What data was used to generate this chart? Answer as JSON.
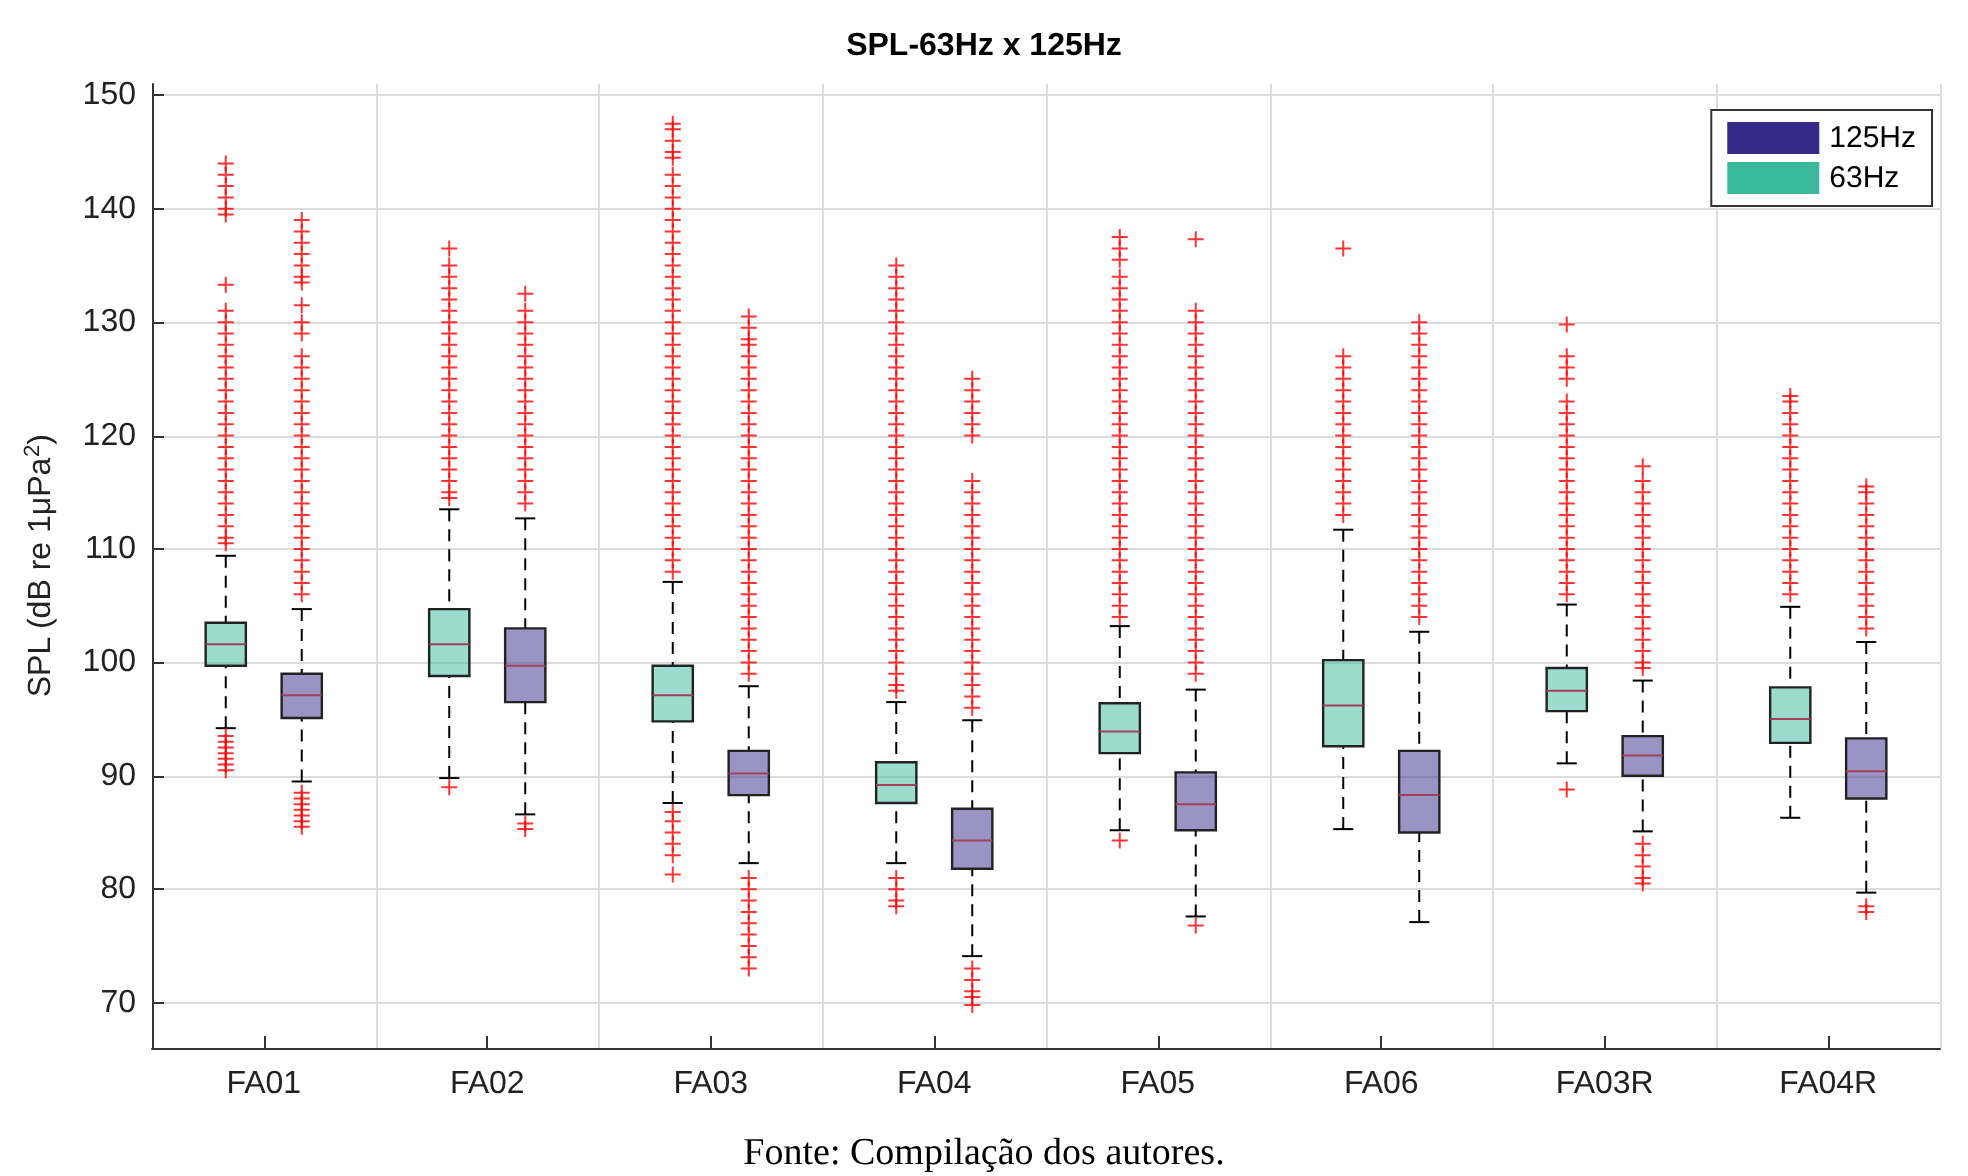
{
  "chart_data": {
    "type": "box",
    "title": "SPL-63Hz x 125Hz",
    "ylabel": "SPL (dB re 1μPa$^{2}$)",
    "categories": [
      "FA01",
      "FA02",
      "FA03",
      "FA04",
      "FA05",
      "FA06",
      "FA03R",
      "FA04R"
    ],
    "ylim": [
      66,
      151
    ],
    "yticks": [
      70,
      80,
      90,
      100,
      110,
      120,
      130,
      140,
      150
    ],
    "grid": true,
    "legend": "top right",
    "marker": "cross",
    "annotations": [
      "Fonte: Compilação dos autores."
    ],
    "series": [
      {
        "name": "63Hz",
        "color": "#3ab99d",
        "boxes": [
          {
            "low": 94.2,
            "q1": 99.7,
            "median": 101.6,
            "q3": 103.5,
            "high": 109.4,
            "outliers": [
              90.5,
              91,
              91.5,
              92,
              92.5,
              93,
              93.5,
              110.5,
              111,
              112,
              113,
              114,
              115,
              116,
              117,
              118,
              119,
              120,
              121,
              122,
              123,
              124,
              125,
              126,
              127,
              128,
              129,
              130,
              131,
              133.3,
              139.5,
              140,
              141,
              142,
              143,
              144
            ]
          },
          {
            "low": 89.8,
            "q1": 98.8,
            "median": 101.6,
            "q3": 104.7,
            "high": 113.5,
            "outliers": [
              89,
              114.5,
              115,
              116,
              117,
              118,
              119,
              120,
              121,
              122,
              123,
              124,
              125,
              126,
              127,
              128,
              129,
              130,
              131,
              132,
              133,
              134,
              135,
              136.5
            ]
          },
          {
            "low": 87.6,
            "q1": 94.8,
            "median": 97.1,
            "q3": 99.7,
            "high": 107.1,
            "outliers": [
              81.3,
              83,
              84,
              85,
              86,
              86.8,
              108,
              109,
              110,
              111,
              112,
              113,
              114,
              115,
              116,
              117,
              118,
              119,
              120,
              121,
              122,
              123,
              124,
              125,
              126,
              127,
              128,
              129,
              130,
              131,
              132,
              133,
              134,
              135,
              136,
              137,
              138,
              139,
              140,
              141,
              142,
              143,
              144.5,
              145,
              146,
              147,
              147.5
            ]
          },
          {
            "low": 82.3,
            "q1": 87.6,
            "median": 89.2,
            "q3": 91.2,
            "high": 96.5,
            "outliers": [
              78.5,
              79,
              80,
              81,
              97.5,
              98,
              99,
              100,
              101,
              102,
              103,
              104,
              105,
              106,
              107,
              108,
              109,
              110,
              111,
              112,
              113,
              114,
              115,
              116,
              117,
              118,
              119,
              120,
              121,
              122,
              123,
              124,
              125,
              126,
              127,
              128,
              129,
              130,
              131,
              132,
              133,
              134,
              135
            ]
          },
          {
            "low": 85.2,
            "q1": 92,
            "median": 93.9,
            "q3": 96.4,
            "high": 103.2,
            "outliers": [
              84.3,
              104,
              105,
              106,
              107,
              108,
              109,
              110,
              111,
              112,
              113,
              114,
              115,
              116,
              117,
              118,
              119,
              120,
              121,
              122,
              123,
              124,
              125,
              126,
              127,
              128,
              129,
              130,
              131,
              132,
              133,
              134,
              135.5,
              136.5,
              137.5
            ]
          },
          {
            "low": 85.3,
            "q1": 92.6,
            "median": 96.2,
            "q3": 100.2,
            "high": 111.7,
            "outliers": [
              113,
              114,
              115,
              116,
              117,
              118,
              119,
              120,
              121,
              122,
              123,
              124,
              125,
              126,
              127,
              136.5
            ]
          },
          {
            "low": 91.1,
            "q1": 95.7,
            "median": 97.5,
            "q3": 99.5,
            "high": 105.1,
            "outliers": [
              88.8,
              106,
              107,
              108,
              109,
              110,
              111,
              112,
              113,
              114,
              115,
              116,
              117,
              118,
              119,
              120,
              121,
              122,
              123,
              125,
              126,
              127,
              129.8
            ]
          },
          {
            "low": 86.3,
            "q1": 92.9,
            "median": 95,
            "q3": 97.8,
            "high": 104.9,
            "outliers": [
              106,
              107,
              108,
              109,
              110,
              111,
              112,
              113,
              114,
              115,
              116,
              117,
              118,
              119,
              120,
              121,
              122,
              123,
              123.5
            ]
          }
        ]
      },
      {
        "name": "125Hz",
        "color": "#35298a",
        "boxes": [
          {
            "low": 89.5,
            "q1": 95.1,
            "median": 97.1,
            "q3": 99,
            "high": 104.7,
            "outliers": [
              85.5,
              86,
              86.5,
              87,
              87.5,
              88,
              88.5,
              106,
              107,
              108,
              109,
              110,
              111,
              112,
              113,
              114,
              115,
              116,
              117,
              118,
              119,
              120,
              121,
              122,
              123,
              124,
              125,
              126,
              127,
              129,
              130,
              131.5,
              133.5,
              134,
              135,
              136,
              137,
              138,
              139
            ]
          },
          {
            "low": 86.6,
            "q1": 96.5,
            "median": 99.7,
            "q3": 103,
            "high": 112.7,
            "outliers": [
              85.3,
              85.8,
              114,
              115,
              116,
              117,
              118,
              119,
              120,
              121,
              122,
              123,
              124,
              125,
              126,
              127,
              128,
              129,
              130,
              131,
              132.5
            ]
          },
          {
            "low": 82.3,
            "q1": 88.3,
            "median": 90.2,
            "q3": 92.2,
            "high": 97.9,
            "outliers": [
              73,
              74,
              75,
              76,
              77,
              78,
              79,
              80,
              81,
              99,
              100,
              101,
              102,
              103,
              104,
              105,
              106,
              107,
              108,
              109,
              110,
              111,
              112,
              113,
              114,
              115,
              116,
              117,
              118,
              119,
              120,
              121,
              122,
              123,
              124,
              125,
              126,
              127,
              128,
              128.5,
              129.5,
              130.5
            ]
          },
          {
            "low": 74.1,
            "q1": 81.8,
            "median": 84.3,
            "q3": 87.1,
            "high": 94.9,
            "outliers": [
              69.8,
              70.5,
              71,
              72,
              73,
              96,
              97,
              98,
              99,
              100,
              101,
              102,
              103,
              104,
              105,
              106,
              107,
              108,
              109,
              110,
              111,
              112,
              113,
              114,
              115,
              116,
              120,
              121,
              122,
              123,
              124,
              125
            ]
          },
          {
            "low": 77.6,
            "q1": 85.2,
            "median": 87.5,
            "q3": 90.3,
            "high": 97.6,
            "outliers": [
              76.8,
              99,
              100,
              101,
              102,
              103,
              104,
              105,
              106,
              107,
              108,
              109,
              110,
              111,
              112,
              113,
              114,
              115,
              116,
              117,
              118,
              119,
              120,
              121,
              122,
              123,
              124,
              125,
              126,
              127,
              128,
              129,
              130,
              131,
              137.3
            ]
          },
          {
            "low": 77.1,
            "q1": 85,
            "median": 88.3,
            "q3": 92.2,
            "high": 102.7,
            "outliers": [
              104,
              105,
              106,
              107,
              108,
              109,
              110,
              111,
              112,
              113,
              114,
              115,
              116,
              117,
              118,
              119,
              120,
              121,
              122,
              123,
              124,
              125,
              126,
              127,
              128,
              129,
              130
            ]
          },
          {
            "low": 85.1,
            "q1": 90,
            "median": 91.8,
            "q3": 93.5,
            "high": 98.4,
            "outliers": [
              80.5,
              81,
              82,
              83,
              84,
              99.5,
              100,
              101,
              102,
              103,
              104,
              105,
              106,
              107,
              108,
              109,
              110,
              111,
              112,
              113,
              114,
              115,
              116,
              117.3
            ]
          },
          {
            "low": 79.7,
            "q1": 88,
            "median": 90.4,
            "q3": 93.3,
            "high": 101.8,
            "outliers": [
              78,
              78.5,
              103,
              104,
              105,
              106,
              107,
              108,
              109,
              110,
              111,
              112,
              113,
              114,
              115,
              115.5
            ]
          }
        ]
      }
    ]
  }
}
